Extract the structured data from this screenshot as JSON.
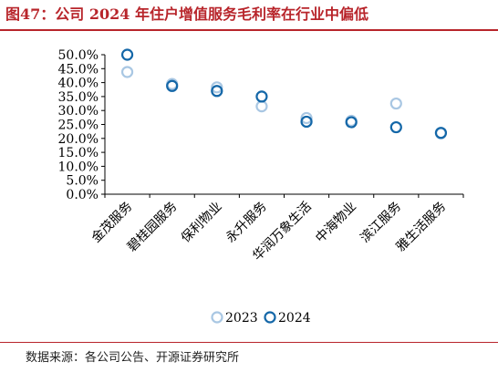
{
  "title": "图47：公司 2024 年住户增值服务毛利率在行业中偏低",
  "source": "数据来源：各公司公告、开源证券研究所",
  "colors": {
    "title": "#b8252b",
    "s2023": "#a9c7e3",
    "s2024": "#1467a8"
  },
  "chart_data": {
    "type": "scatter",
    "categories": [
      "金茂服务",
      "碧桂园服务",
      "保利物业",
      "永升服务",
      "华润万象生活",
      "中海物业",
      "滨江服务",
      "雅生活服务"
    ],
    "series": [
      {
        "name": "2023",
        "values": [
          43.8,
          39.5,
          38.3,
          31.5,
          27.3,
          26.3,
          32.5,
          21.8
        ]
      },
      {
        "name": "2024",
        "values": [
          50.0,
          38.8,
          37.0,
          35.0,
          26.0,
          25.8,
          24.0,
          22.0
        ]
      }
    ],
    "ylim": [
      0,
      50
    ],
    "yticks": [
      "0.0%",
      "5.0%",
      "10.0%",
      "15.0%",
      "20.0%",
      "25.0%",
      "30.0%",
      "35.0%",
      "40.0%",
      "45.0%",
      "50.0%"
    ],
    "legend": [
      "2023",
      "2024"
    ],
    "legend_position": "bottom",
    "grid": false
  }
}
